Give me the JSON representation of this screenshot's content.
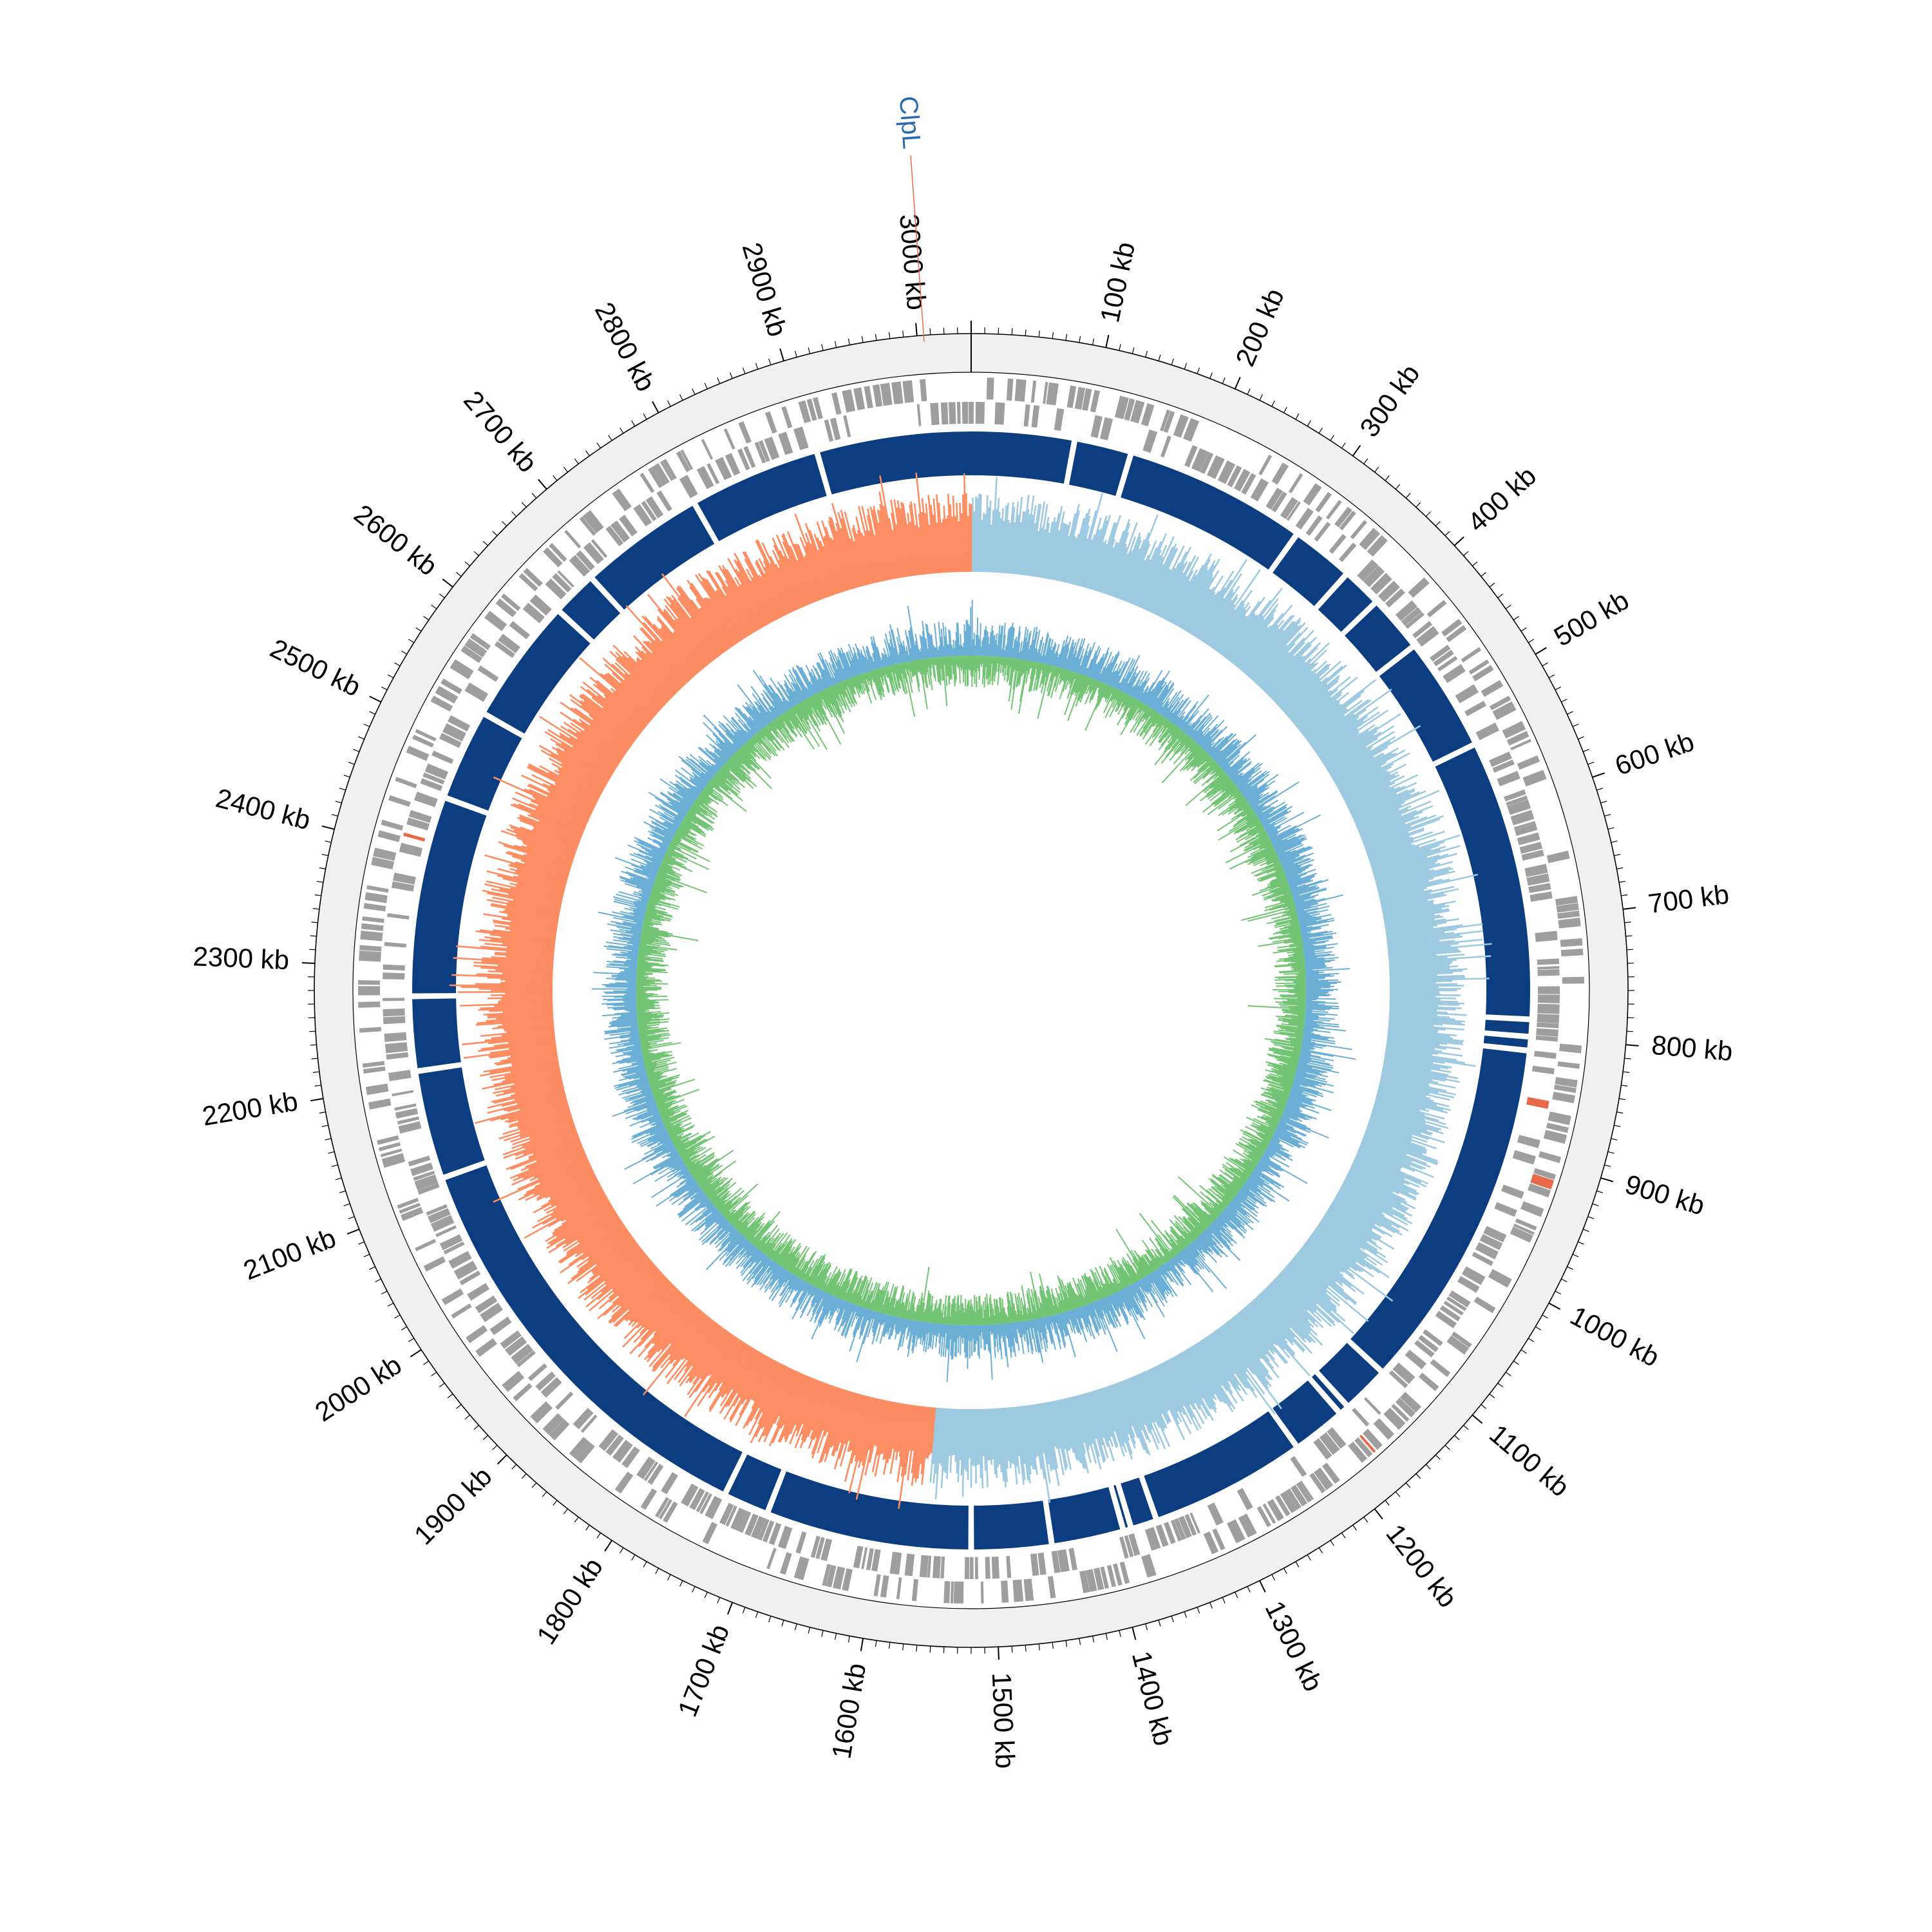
{
  "genome": {
    "length_kb": 3040,
    "unit": "kb"
  },
  "scale": {
    "major_tick_step_kb": 100,
    "minor_tick_step_kb": 10,
    "labels": [
      "100 kb",
      "200 kb",
      "300 kb",
      "400 kb",
      "500 kb",
      "600 kb",
      "700 kb",
      "800 kb",
      "900 kb",
      "1000 kb",
      "1100 kb",
      "1200 kb",
      "1300 kb",
      "1400 kb",
      "1500 kb",
      "1600 kb",
      "1700 kb",
      "1800 kb",
      "1900 kb",
      "2000 kb",
      "2100 kb",
      "2200 kb",
      "2300 kb",
      "2400 kb",
      "2500 kb",
      "2600 kb",
      "2700 kb",
      "2800 kb",
      "2900 kb",
      "3000 kb"
    ]
  },
  "annotations": [
    {
      "name": "ClpL",
      "position_kb": 3005,
      "color": "#2b6cb0",
      "line_color": "#e8694a"
    }
  ],
  "tracks": {
    "features": {
      "color": "#9e9e9e",
      "highlight_color": "#e8694a",
      "background": "#f0f0f0"
    },
    "contigs": {
      "color": "#0b3d80",
      "gaps_kb": [
        90,
        140,
        300,
        355,
        390,
        440,
        540,
        785,
        800,
        812,
        1122,
        1164,
        1173,
        1220,
        1357,
        1380,
        1387,
        1450,
        1520,
        1700,
        1740,
        2115,
        2210,
        2275,
        2450,
        2530,
        2640,
        2680,
        2790,
        2905
      ]
    },
    "gc_skew": {
      "positive_color": "#9ecae1",
      "negative_color": "#fc8d62"
    },
    "gc_content": {
      "above_color": "#6baed6",
      "below_color": "#74c476"
    }
  }
}
